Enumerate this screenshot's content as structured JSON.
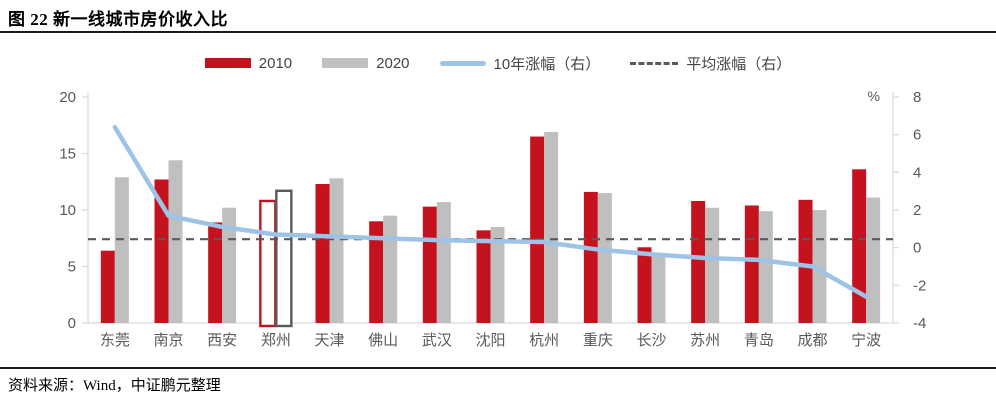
{
  "title": "图 22  新一线城市房价收入比",
  "source": "资料来源：Wind，中证鹏元整理",
  "colors": {
    "bar_2010": "#c5121f",
    "bar_2020": "#bfbfbf",
    "growth_line": "#9dc3e6",
    "average_line": "#595959",
    "highlight_outline_2020": "#595959",
    "axis": "#d9d9d9",
    "tick_text": "#595959",
    "legend_text": "#444444"
  },
  "legend": [
    {
      "id": "2010",
      "label": "2010",
      "type": "bar",
      "color": "#c5121f"
    },
    {
      "id": "2020",
      "label": "2020",
      "type": "bar",
      "color": "#bfbfbf"
    },
    {
      "id": "growth-10y",
      "label": "10年涨幅（右）",
      "type": "line",
      "color": "#9dc3e6"
    },
    {
      "id": "avg-growth",
      "label": "平均涨幅（右）",
      "type": "dash",
      "color": "#595959"
    }
  ],
  "chart_data": {
    "type": "bar",
    "subtype": "grouped bars with secondary-axis line",
    "title": "新一线城市房价收入比",
    "categories": [
      "东莞",
      "南京",
      "西安",
      "郑州",
      "天津",
      "佛山",
      "武汉",
      "沈阳",
      "杭州",
      "重庆",
      "长沙",
      "苏州",
      "青岛",
      "成都",
      "宁波"
    ],
    "series": [
      {
        "name": "2010",
        "type": "bar",
        "axis": "left",
        "values": [
          6.4,
          12.7,
          8.9,
          10.8,
          12.3,
          9.0,
          10.3,
          8.2,
          16.5,
          11.6,
          6.7,
          10.8,
          10.4,
          10.9,
          13.6
        ]
      },
      {
        "name": "2020",
        "type": "bar",
        "axis": "left",
        "values": [
          12.9,
          14.4,
          10.2,
          11.7,
          12.8,
          9.5,
          10.7,
          8.5,
          16.9,
          11.5,
          6.1,
          10.2,
          9.9,
          10.0,
          11.1
        ]
      },
      {
        "name": "10年涨幅（右）",
        "type": "line",
        "axis": "right",
        "values": [
          6.4,
          1.7,
          1.1,
          0.7,
          0.6,
          0.5,
          0.4,
          0.35,
          0.3,
          -0.1,
          -0.35,
          -0.55,
          -0.65,
          -1.0,
          -2.6
        ]
      },
      {
        "name": "平均涨幅（右）",
        "type": "constant-dashed-line",
        "axis": "right",
        "value": 0.45
      }
    ],
    "highlight_category": "郑州",
    "highlight_style": "hollow outlined bars",
    "left_axis": {
      "min": 0,
      "max": 20,
      "ticks": [
        0,
        5,
        10,
        15,
        20
      ]
    },
    "right_axis": {
      "min": -4,
      "max": 8,
      "ticks": [
        -4,
        -2,
        0,
        2,
        4,
        6,
        8
      ],
      "unit": "%"
    },
    "grid": false,
    "legend_position": "top"
  }
}
